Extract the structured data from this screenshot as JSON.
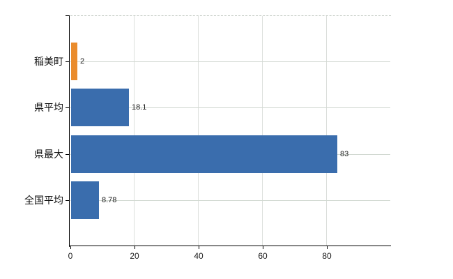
{
  "chart_data": {
    "type": "bar",
    "orientation": "horizontal",
    "title": "",
    "categories": [
      "稲美町",
      "県平均",
      "県最大",
      "全国平均"
    ],
    "values": [
      2,
      18.1,
      83,
      8.78
    ],
    "value_labels": [
      "2",
      "18.1",
      "83",
      "8.78"
    ],
    "bar_colors": [
      "#ea8c2d",
      "#3a6dad",
      "#3a6dad",
      "#3a6dad"
    ],
    "xlim": [
      0,
      100
    ],
    "xticks": [
      0,
      20,
      40,
      60,
      80
    ],
    "xtick_labels": [
      "0",
      "20",
      "40",
      "60",
      "80"
    ],
    "grid": true,
    "legend_position": "none"
  },
  "colors": {
    "highlight_bar": "#ea8c2d",
    "default_bar": "#3a6dad",
    "horizontal_gridline": "#d2d9d2",
    "vertical_gridline": "#dcdfdc",
    "plot_top_border": "#c3cac3",
    "axis": "#000000",
    "tick_text": "#1b1b1b",
    "background": "#ffffff"
  }
}
